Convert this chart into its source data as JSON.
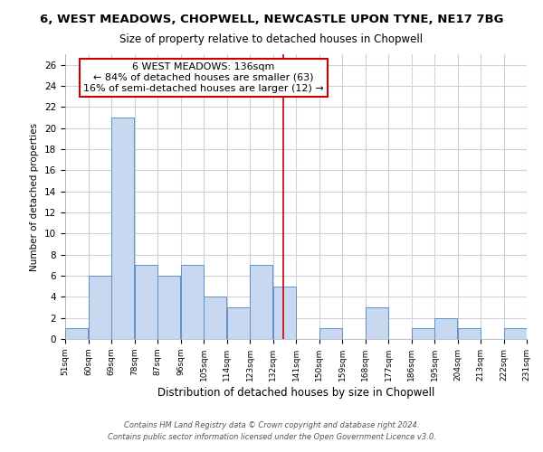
{
  "title": "6, WEST MEADOWS, CHOPWELL, NEWCASTLE UPON TYNE, NE17 7BG",
  "subtitle": "Size of property relative to detached houses in Chopwell",
  "xlabel": "Distribution of detached houses by size in Chopwell",
  "ylabel": "Number of detached properties",
  "bin_edges": [
    51,
    60,
    69,
    78,
    87,
    96,
    105,
    114,
    123,
    132,
    141,
    150,
    159,
    168,
    177,
    186,
    195,
    204,
    213,
    222,
    231
  ],
  "counts": [
    1,
    6,
    21,
    7,
    6,
    7,
    4,
    3,
    7,
    5,
    0,
    1,
    0,
    3,
    0,
    1,
    2,
    1,
    0,
    1
  ],
  "bar_color": "#c8d8f0",
  "bar_edge_color": "#6090c8",
  "vline_x": 136,
  "vline_color": "#cc0000",
  "annotation_title": "6 WEST MEADOWS: 136sqm",
  "annotation_line1": "← 84% of detached houses are smaller (63)",
  "annotation_line2": "16% of semi-detached houses are larger (12) →",
  "annotation_box_color": "#ffffff",
  "annotation_border_color": "#cc0000",
  "ylim": [
    0,
    27
  ],
  "yticks": [
    0,
    2,
    4,
    6,
    8,
    10,
    12,
    14,
    16,
    18,
    20,
    22,
    24,
    26
  ],
  "footnote1": "Contains HM Land Registry data © Crown copyright and database right 2024.",
  "footnote2": "Contains public sector information licensed under the Open Government Licence v3.0.",
  "background_color": "#ffffff",
  "grid_color": "#d0d0d8"
}
